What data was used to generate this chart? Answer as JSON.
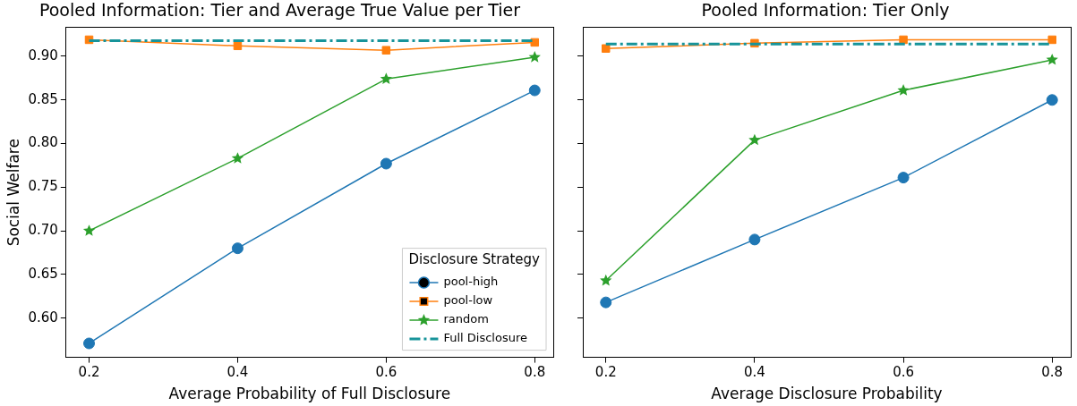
{
  "chart_data": [
    {
      "type": "line",
      "title": "Pooled Information: Tier and Average True Value per Tier",
      "xlabel": "Average Probability of Full Disclosure",
      "ylabel": "Social Welfare",
      "legend_title": "Disclosure Strategy",
      "legend": "bottom right",
      "grid": false,
      "x": [
        0.2,
        0.4,
        0.6,
        0.8
      ],
      "xlim": [
        0.169,
        0.825
      ],
      "xticks": [
        0.2,
        0.4,
        0.6,
        0.8
      ],
      "ylim": [
        0.555,
        0.933
      ],
      "yticks": [
        {
          "value": 0.6,
          "label": "0.60"
        },
        {
          "value": 0.65,
          "label": "0.65"
        },
        {
          "value": 0.7,
          "label": "0.70"
        },
        {
          "value": 0.75,
          "label": "0.75"
        },
        {
          "value": 0.8,
          "label": "0.80"
        },
        {
          "value": 0.85,
          "label": "0.85"
        },
        {
          "value": 0.9,
          "label": "0.90"
        }
      ],
      "series": [
        {
          "name": "pool-high",
          "color": "#1f77b4",
          "marker": "circle",
          "line_style": "solid",
          "values": [
            0.571,
            0.68,
            0.777,
            0.861
          ]
        },
        {
          "name": "pool-low",
          "color": "#ff7f0e",
          "marker": "square",
          "line_style": "solid",
          "values": [
            0.919,
            0.912,
            0.907,
            0.916
          ]
        },
        {
          "name": "random",
          "color": "#2ca02c",
          "marker": "star",
          "line_style": "solid",
          "values": [
            0.7,
            0.783,
            0.874,
            0.899
          ]
        },
        {
          "name": "Full Disclosure",
          "color": "#17949a",
          "marker": "none",
          "line_style": "dashed",
          "values": [
            0.918,
            0.918,
            0.918,
            0.918
          ]
        }
      ]
    },
    {
      "type": "line",
      "title": "Pooled Information: Tier Only",
      "xlabel": "Average Disclosure Probability",
      "grid": false,
      "tick_labels": "x",
      "x": [
        0.2,
        0.4,
        0.6,
        0.8
      ],
      "xlim": [
        0.169,
        0.825
      ],
      "xticks": [
        0.2,
        0.4,
        0.6,
        0.8
      ],
      "ylim": [
        0.555,
        0.933
      ],
      "yticks": [
        {
          "value": 0.6,
          "label": null
        },
        {
          "value": 0.65,
          "label": null
        },
        {
          "value": 0.7,
          "label": null
        },
        {
          "value": 0.75,
          "label": null
        },
        {
          "value": 0.8,
          "label": null
        },
        {
          "value": 0.85,
          "label": null
        },
        {
          "value": 0.9,
          "label": null
        }
      ],
      "series": [
        {
          "color": "#1f77b4",
          "marker": "circle",
          "line_style": "solid",
          "values": [
            0.618,
            0.69,
            0.761,
            0.85
          ]
        },
        {
          "color": "#ff7f0e",
          "marker": "square",
          "line_style": "solid",
          "values": [
            0.909,
            0.915,
            0.919,
            0.919
          ]
        },
        {
          "color": "#2ca02c",
          "marker": "star",
          "line_style": "solid",
          "values": [
            0.643,
            0.804,
            0.861,
            0.896
          ]
        },
        {
          "color": "#17949a",
          "marker": "none",
          "line_style": "dashed",
          "values": [
            0.914,
            0.914,
            0.914,
            0.914
          ]
        }
      ]
    }
  ]
}
